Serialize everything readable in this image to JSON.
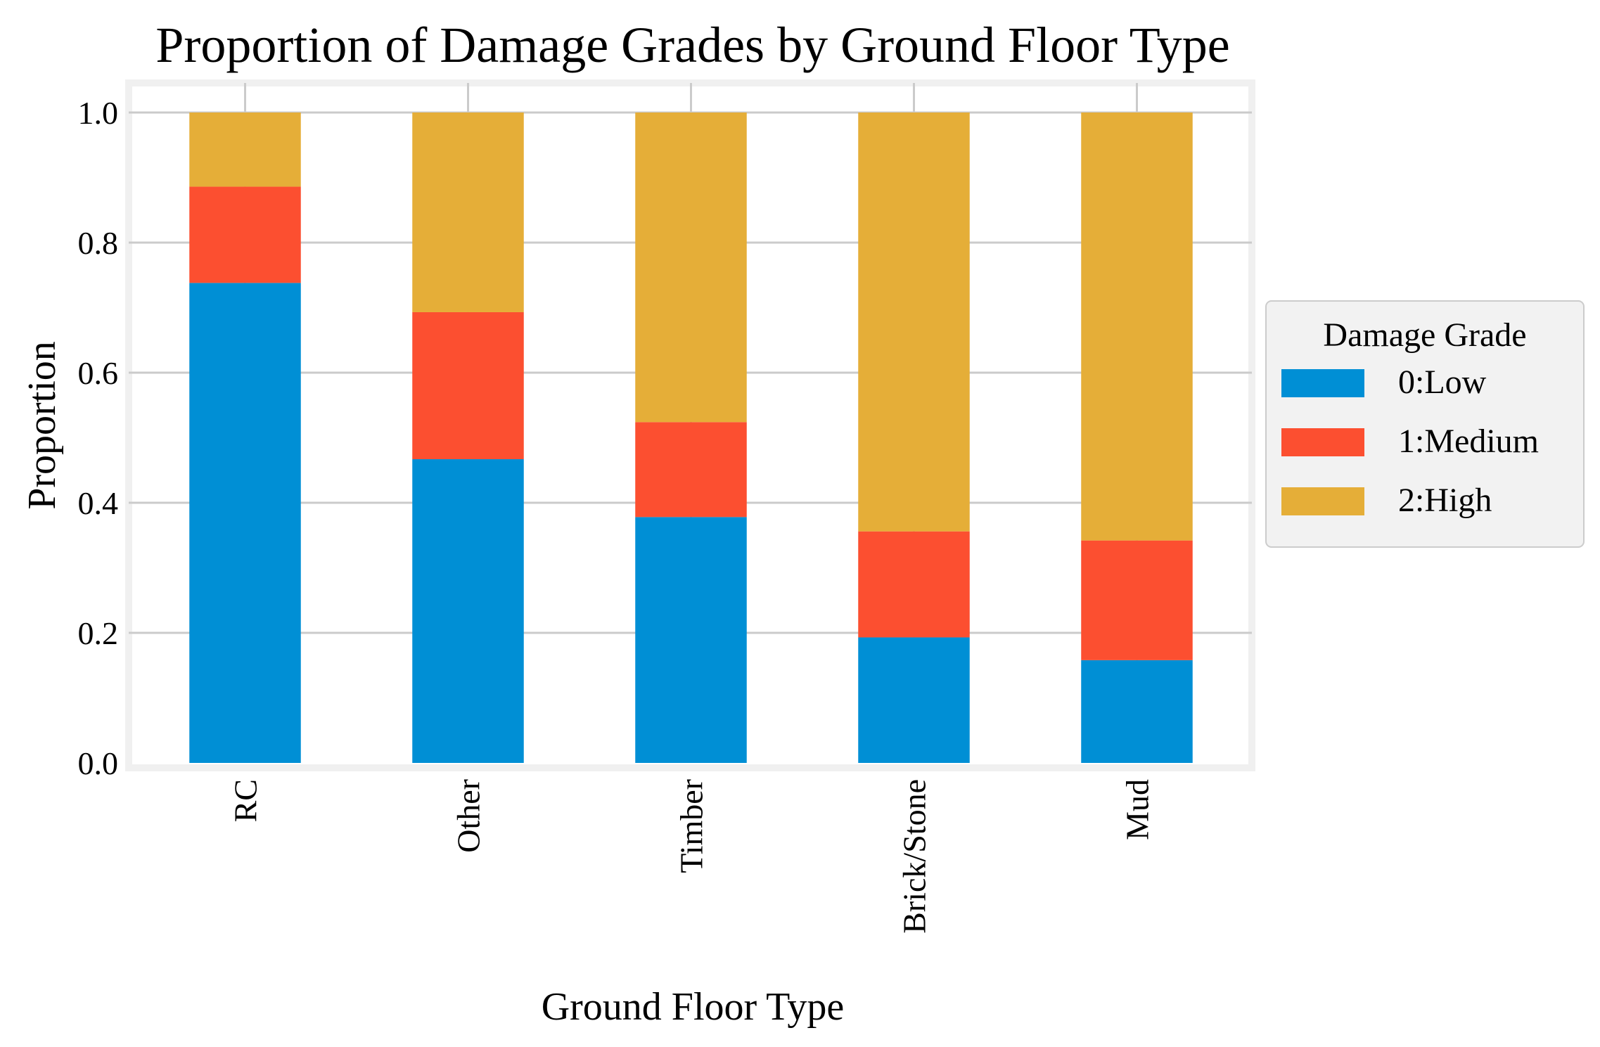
{
  "chart_data": {
    "type": "bar",
    "stacked": true,
    "title": "Proportion of Damage Grades by Ground Floor Type",
    "xlabel": "Ground Floor Type",
    "ylabel": "Proportion",
    "categories": [
      "RC",
      "Other",
      "Timber",
      "Brick/Stone",
      "Mud"
    ],
    "series": [
      {
        "name": "0:Low",
        "color": "#008fd5",
        "values": [
          0.738,
          0.467,
          0.378,
          0.193,
          0.158
        ]
      },
      {
        "name": "1:Medium",
        "color": "#fc4f30",
        "values": [
          0.148,
          0.226,
          0.146,
          0.163,
          0.184
        ]
      },
      {
        "name": "2:High",
        "color": "#e5ae38",
        "values": [
          0.114,
          0.307,
          0.476,
          0.644,
          0.658
        ]
      }
    ],
    "ylim": [
      0,
      1.0
    ],
    "yticks": [
      "0.0",
      "0.2",
      "0.4",
      "0.6",
      "0.8",
      "1.0"
    ],
    "grid": true,
    "legend": {
      "title": "Damage Grade",
      "placement": "right"
    }
  }
}
